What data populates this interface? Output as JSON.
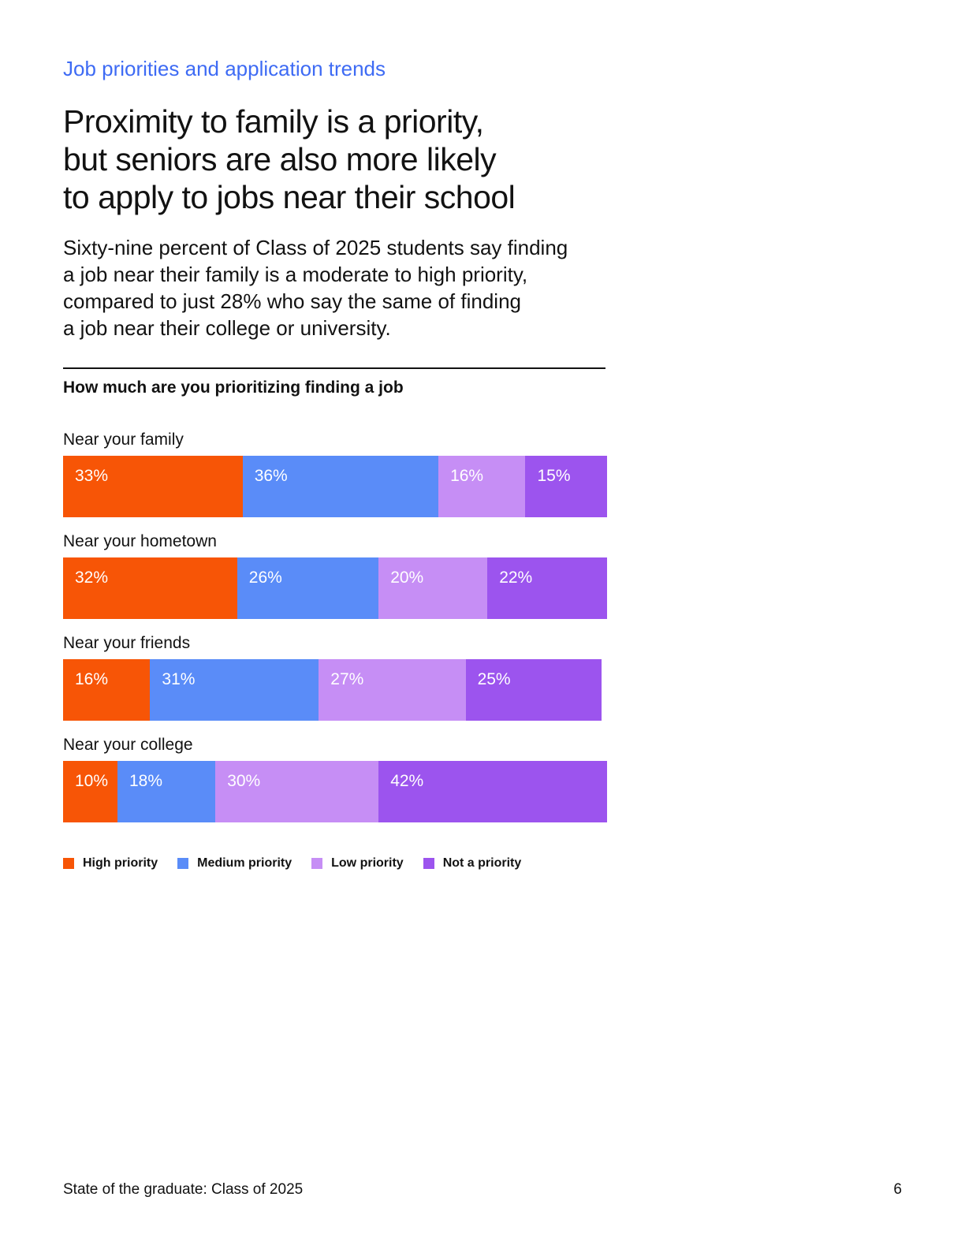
{
  "page": {
    "eyebrow": "Job priorities and application trends",
    "heading_lines": [
      "Proximity to family is a priority,",
      "but seniors are also more likely",
      "to apply to jobs near their school"
    ],
    "paragraph_lines": [
      "Sixty-nine percent of Class of 2025 students say finding",
      "a job near their family is a moderate to high priority,",
      "compared to just 28% who say the same of finding",
      "a job near their college or university."
    ],
    "footer": {
      "left_text": "State of the graduate: Class of 2025",
      "page_number": "6"
    }
  },
  "colors": {
    "eyebrow_blue": "#3E6BF4",
    "text": "#121212",
    "high_priority_orange": "#F75506",
    "medium_priority_blue": "#5A8CF8",
    "low_priority_lavender": "#C68EF5",
    "not_priority_purple": "#9C54EE"
  },
  "chart_data": {
    "type": "bar",
    "orientation": "horizontal",
    "stacked": true,
    "title": "How much are you prioritizing finding a job",
    "unit": "%",
    "xlim": [
      0,
      100
    ],
    "grid": false,
    "legend_position": "bottom",
    "categories": [
      "Near your family",
      "Near your hometown",
      "Near your friends",
      "Near your college"
    ],
    "series": [
      {
        "name": "High priority",
        "color": "#F75506",
        "values": [
          33,
          32,
          16,
          10
        ]
      },
      {
        "name": "Medium priority",
        "color": "#5A8CF8",
        "values": [
          36,
          26,
          31,
          18
        ]
      },
      {
        "name": "Low priority",
        "color": "#C68EF5",
        "values": [
          16,
          20,
          27,
          30
        ]
      },
      {
        "name": "Not a priority",
        "color": "#9C54EE",
        "values": [
          15,
          22,
          25,
          42
        ]
      }
    ]
  }
}
